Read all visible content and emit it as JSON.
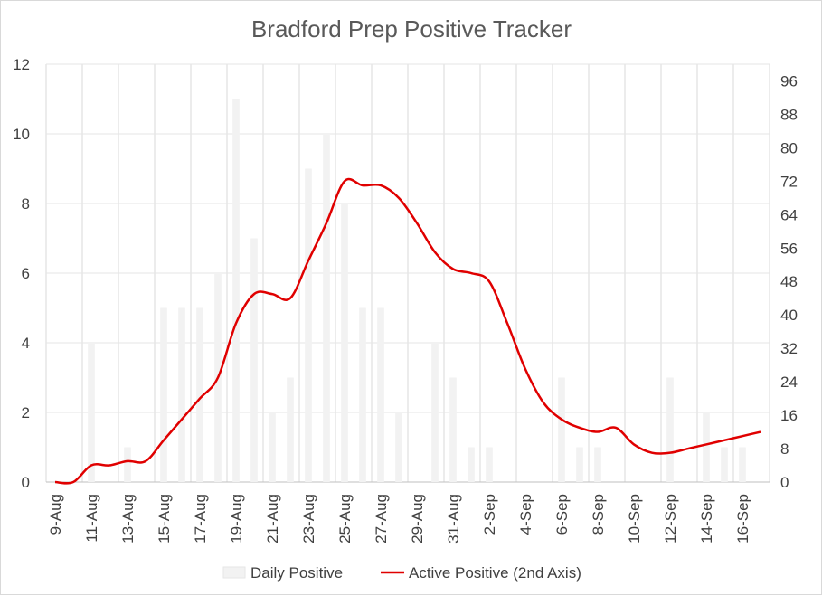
{
  "chart_data": {
    "type": "bar",
    "title": "Bradford Prep Positive Tracker",
    "categories": [
      "9-Aug",
      "10-Aug",
      "11-Aug",
      "12-Aug",
      "13-Aug",
      "14-Aug",
      "15-Aug",
      "16-Aug",
      "17-Aug",
      "18-Aug",
      "19-Aug",
      "20-Aug",
      "21-Aug",
      "22-Aug",
      "23-Aug",
      "24-Aug",
      "25-Aug",
      "26-Aug",
      "27-Aug",
      "28-Aug",
      "29-Aug",
      "30-Aug",
      "31-Aug",
      "1-Sep",
      "2-Sep",
      "3-Sep",
      "4-Sep",
      "5-Sep",
      "6-Sep",
      "7-Sep",
      "8-Sep",
      "9-Sep",
      "10-Sep",
      "11-Sep",
      "12-Sep",
      "13-Sep",
      "14-Sep",
      "15-Sep",
      "16-Sep",
      "17-Sep"
    ],
    "x_tick_labels": [
      "9-Aug",
      "11-Aug",
      "13-Aug",
      "15-Aug",
      "17-Aug",
      "19-Aug",
      "21-Aug",
      "23-Aug",
      "25-Aug",
      "27-Aug",
      "29-Aug",
      "31-Aug",
      "2-Sep",
      "4-Sep",
      "6-Sep",
      "8-Sep",
      "10-Sep",
      "12-Sep",
      "14-Sep",
      "16-Sep"
    ],
    "series": [
      {
        "name": "Daily Positive",
        "type": "bar",
        "axis": "primary",
        "color": "#f2f2f2",
        "values": [
          0,
          0,
          4,
          0,
          1,
          0,
          5,
          5,
          5,
          6,
          11,
          7,
          2,
          3,
          9,
          10,
          8,
          5,
          5,
          2,
          0,
          4,
          3,
          1,
          1,
          0,
          0,
          0,
          3,
          1,
          1,
          0,
          0,
          0,
          3,
          0,
          2,
          1,
          1,
          0
        ]
      },
      {
        "name": "Active Positive (2nd Axis)",
        "type": "line",
        "axis": "secondary",
        "color": "#e00000",
        "values": [
          0,
          0,
          4,
          4,
          5,
          5,
          10,
          15,
          20,
          25,
          38,
          45,
          45,
          44,
          53,
          62,
          72,
          71,
          71,
          68,
          62,
          55,
          51,
          50,
          48,
          38,
          27,
          19,
          15,
          13,
          12,
          13,
          9,
          7,
          7,
          8,
          9,
          10,
          11,
          12
        ]
      }
    ],
    "y_primary": {
      "min": 0,
      "max": 12,
      "ticks": [
        0,
        2,
        4,
        6,
        8,
        10,
        12
      ]
    },
    "y_secondary": {
      "min": 0,
      "max": 100,
      "ticks": [
        0,
        8,
        16,
        24,
        32,
        40,
        48,
        56,
        64,
        72,
        80,
        88,
        96
      ]
    },
    "grid": true,
    "legend_position": "bottom"
  }
}
